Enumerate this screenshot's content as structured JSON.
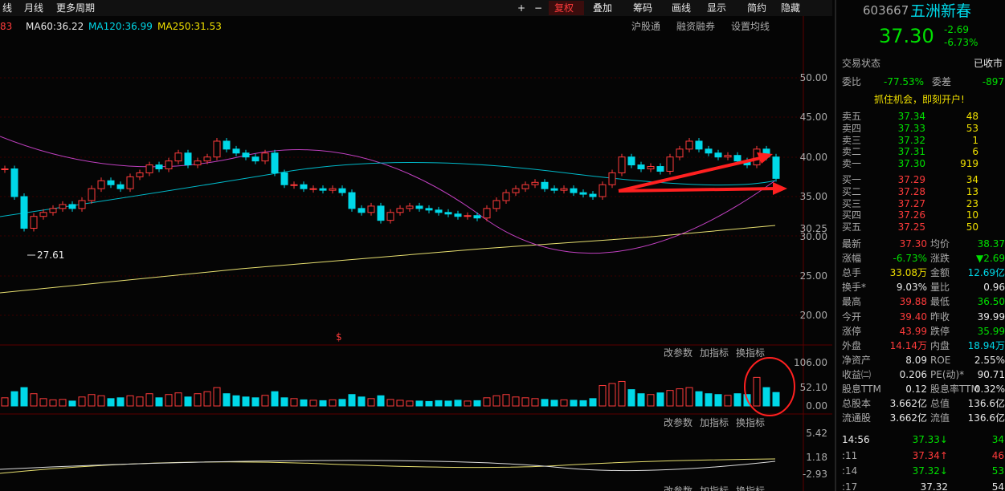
{
  "toolbar": {
    "left": [
      "线",
      "月线",
      "更多周期"
    ],
    "right": [
      "+",
      "−",
      "复权",
      "叠加",
      "筹码",
      "画线",
      "显示",
      "简约",
      "隐藏"
    ]
  },
  "ma_legend": [
    "83",
    "MA60:36.22",
    "MA120:36.99",
    "MA250:31.53"
  ],
  "chart_links": [
    "沪股通",
    "融资融券",
    "设置均线"
  ],
  "price_axis": [
    "50.00",
    "45.00",
    "40.00",
    "35.00",
    "30.25",
    "30.00",
    "25.00",
    "20.00"
  ],
  "low_label": "27.61",
  "signal_mark": "$",
  "panel_tools": [
    "改参数",
    "加指标",
    "换指标"
  ],
  "volume_axis": [
    "106.00",
    "52.10",
    "0.00"
  ],
  "indicator_axis": [
    "5.42",
    "1.18",
    "-2.93"
  ],
  "kline": {
    "close": [
      38.5,
      35,
      31,
      32.5,
      33,
      33.5,
      34,
      33.5,
      34.5,
      36,
      37,
      36.5,
      36,
      37.5,
      38,
      39,
      38.5,
      39.5,
      40.5,
      39,
      39.5,
      40,
      42,
      41,
      40.5,
      40,
      39.5,
      40.5,
      38,
      36.5,
      36.5,
      36,
      36,
      35.8,
      36,
      35.5,
      33.5,
      33,
      33.8,
      32,
      33,
      33.5,
      33.8,
      33.5,
      33.3,
      33,
      32.8,
      32.5,
      32.6,
      32.3,
      33.5,
      34.5,
      35.5,
      36,
      36.5,
      36.8,
      36,
      35.8,
      36,
      35.5,
      35.3,
      35,
      36.5,
      38,
      40,
      39,
      38.5,
      38.8,
      38.2,
      40,
      41,
      42,
      41,
      40.5,
      40,
      40.2,
      39.5,
      39,
      41,
      40,
      37.3
    ]
  },
  "volume": [
    20,
    35,
    45,
    30,
    18,
    15,
    16,
    12,
    22,
    28,
    25,
    18,
    20,
    25,
    22,
    30,
    20,
    28,
    32,
    22,
    30,
    35,
    45,
    30,
    25,
    22,
    20,
    26,
    35,
    20,
    18,
    15,
    14,
    13,
    15,
    16,
    28,
    22,
    18,
    25,
    16,
    14,
    12,
    12,
    11,
    13,
    12,
    14,
    12,
    13,
    20,
    25,
    28,
    22,
    20,
    18,
    16,
    14,
    15,
    14,
    13,
    18,
    50,
    55,
    60,
    40,
    30,
    28,
    32,
    38,
    42,
    45,
    35,
    30,
    28,
    26,
    30,
    28,
    70,
    45,
    33
  ],
  "quote": {
    "code": "603667",
    "name": "五洲新春",
    "price": "37.30",
    "change": "-2.69",
    "pct": "-6.73%",
    "status_label": "交易状态",
    "status": "已收市",
    "ratio_label": "委比",
    "ratio": "-77.53%",
    "diff_label": "委差",
    "diff": "-897",
    "ad": "抓住机会，即刻开户!",
    "asks": [
      [
        "卖五",
        "37.34",
        "48"
      ],
      [
        "卖四",
        "37.33",
        "53"
      ],
      [
        "卖三",
        "37.32",
        "1"
      ],
      [
        "卖二",
        "37.31",
        "6"
      ],
      [
        "卖一",
        "37.30",
        "919"
      ]
    ],
    "bids": [
      [
        "买一",
        "37.29",
        "34"
      ],
      [
        "买二",
        "37.28",
        "13"
      ],
      [
        "买三",
        "37.27",
        "23"
      ],
      [
        "买四",
        "37.26",
        "10"
      ],
      [
        "买五",
        "37.25",
        "50"
      ]
    ],
    "stats": [
      [
        "最新",
        "37.30",
        "均价",
        "38.37"
      ],
      [
        "涨幅",
        "-6.73%",
        "涨跌",
        "▼2.69"
      ],
      [
        "总手",
        "33.08万",
        "金额",
        "12.69亿"
      ],
      [
        "换手*",
        "9.03%",
        "量比",
        "0.96"
      ],
      [
        "最高",
        "39.88",
        "最低",
        "36.50"
      ],
      [
        "今开",
        "39.40",
        "昨收",
        "39.99"
      ],
      [
        "涨停",
        "43.99",
        "跌停",
        "35.99"
      ],
      [
        "外盘",
        "14.14万",
        "内盘",
        "18.94万"
      ],
      [
        "净资产",
        "8.09",
        "ROE",
        "2.55%"
      ],
      [
        "收益㈡",
        "0.206",
        "PE(动)*",
        "90.71"
      ],
      [
        "股息TTM",
        "0.12",
        "股息率TTM",
        "0.32%"
      ],
      [
        "总股本",
        "3.662亿",
        "总值",
        "136.6亿"
      ],
      [
        "流通股",
        "3.662亿",
        "流值",
        "136.6亿"
      ]
    ],
    "ticks": [
      [
        "14:56",
        "37.33↓",
        "34"
      ],
      [
        ":11",
        "37.34↑",
        "46"
      ],
      [
        ":14",
        "37.32↓",
        "53"
      ],
      [
        ":17",
        "37.32",
        "54"
      ]
    ]
  }
}
